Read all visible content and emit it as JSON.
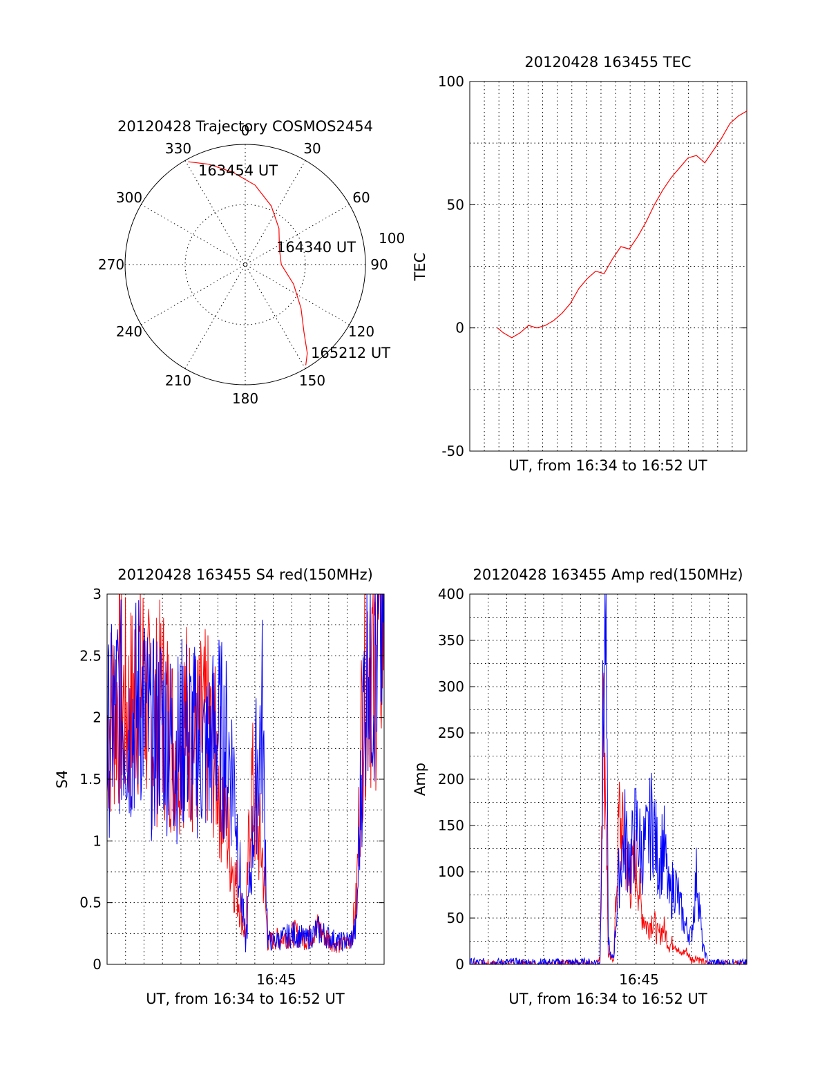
{
  "colors": {
    "primary": "#ff0000",
    "secondary": "#0000ff",
    "axis": "#000000"
  },
  "chart_data": [
    {
      "type": "polar",
      "title": "20120428 Trajectory COSMOS2454",
      "angle_labels": [
        "0",
        "30",
        "60",
        "90",
        "120",
        "150",
        "180",
        "210",
        "240",
        "270",
        "300",
        "330"
      ],
      "radius_label": "100",
      "point_labels": {
        "start": "163454 UT",
        "middle": "164340 UT",
        "end": "165212 UT"
      },
      "trajectory": {
        "azimuth_deg": [
          331,
          340,
          352,
          7,
          24,
          43,
          66,
          90,
          112,
          128,
          139,
          145,
          149
        ],
        "zenith_deg": [
          88,
          80,
          70,
          60,
          48,
          37,
          28,
          27,
          39,
          53,
          67,
          81,
          88
        ]
      }
    },
    {
      "type": "line",
      "title": "20120428 163455 TEC",
      "xlabel": "UT, from 16:34 to 16:52 UT",
      "ylabel": "TEC",
      "ylim": [
        -50,
        100
      ],
      "yticks": [
        "100",
        "50",
        "0",
        "-50"
      ],
      "xlim": [
        16.55,
        16.88
      ],
      "grid": true,
      "series": [
        {
          "color": "#ff0000",
          "x": [
            16.583,
            16.59,
            16.6,
            16.61,
            16.62,
            16.63,
            16.64,
            16.65,
            16.66,
            16.67,
            16.68,
            16.69,
            16.7,
            16.71,
            16.72,
            16.73,
            16.74,
            16.75,
            16.76,
            16.77,
            16.78,
            16.79,
            16.8,
            16.81,
            16.82,
            16.83,
            16.84,
            16.85,
            16.855,
            16.86,
            16.87,
            16.88
          ],
          "y": [
            0,
            -2,
            -4,
            -2,
            1,
            0,
            1,
            3,
            6,
            10,
            16,
            20,
            23,
            22,
            28,
            33,
            32,
            37,
            43,
            50,
            56,
            61,
            65,
            69,
            70,
            67,
            72,
            77,
            80,
            83,
            86,
            88
          ]
        }
      ]
    },
    {
      "type": "line",
      "title": "20120428 163455 S4 red(150MHz)",
      "xlabel": "UT, from 16:34 to 16:52 UT",
      "ylabel": "S4",
      "ylim": [
        0,
        3
      ],
      "yticks": [
        "3",
        "2.5",
        "2",
        "1.5",
        "1",
        "0.5",
        "0"
      ],
      "xtick_label": "16:45",
      "grid": true,
      "series": [
        {
          "color": "#ff0000",
          "x": [
            0.0,
            0.04,
            0.08,
            0.12,
            0.16,
            0.2,
            0.24,
            0.28,
            0.32,
            0.36,
            0.4,
            0.44,
            0.46,
            0.48,
            0.5,
            0.52,
            0.54,
            0.56,
            0.58,
            0.6,
            0.64,
            0.68,
            0.72,
            0.76,
            0.8,
            0.84,
            0.88,
            0.9,
            0.92,
            0.94,
            0.96,
            1.0
          ],
          "y": [
            1.9,
            2.2,
            2.0,
            2.4,
            1.9,
            2.1,
            1.8,
            2.0,
            1.8,
            1.9,
            1.6,
            1.0,
            0.7,
            0.5,
            0.2,
            1.5,
            1.1,
            0.9,
            0.18,
            0.2,
            0.22,
            0.25,
            0.2,
            0.3,
            0.2,
            0.15,
            0.2,
            0.5,
            2.0,
            2.6,
            2.4,
            2.8
          ]
        },
        {
          "color": "#0000ff",
          "x": [
            0.0,
            0.04,
            0.08,
            0.12,
            0.16,
            0.2,
            0.24,
            0.28,
            0.32,
            0.36,
            0.4,
            0.44,
            0.46,
            0.48,
            0.5,
            0.52,
            0.54,
            0.56,
            0.58,
            0.6,
            0.64,
            0.68,
            0.72,
            0.76,
            0.8,
            0.84,
            0.88,
            0.9,
            0.92,
            0.94,
            0.96,
            1.0
          ],
          "y": [
            1.8,
            2.1,
            1.9,
            2.2,
            1.8,
            2.0,
            1.7,
            1.9,
            1.8,
            1.7,
            1.9,
            1.7,
            1.5,
            0.7,
            0.15,
            0.8,
            1.6,
            2.0,
            0.2,
            0.18,
            0.22,
            0.25,
            0.2,
            0.28,
            0.22,
            0.18,
            0.2,
            0.3,
            1.7,
            2.8,
            2.4,
            2.9
          ]
        }
      ]
    },
    {
      "type": "line",
      "title": "20120428 163455 Amp red(150MHz)",
      "xlabel": "UT, from 16:34 to 16:52 UT",
      "ylabel": "Amp",
      "ylim": [
        0,
        400
      ],
      "yticks": [
        "400",
        "350",
        "300",
        "250",
        "200",
        "150",
        "100",
        "50",
        "0"
      ],
      "xtick_label": "16:45",
      "grid": true,
      "series": [
        {
          "color": "#ff0000",
          "x": [
            0.0,
            0.45,
            0.47,
            0.48,
            0.49,
            0.5,
            0.51,
            0.52,
            0.54,
            0.56,
            0.58,
            0.6,
            0.62,
            0.64,
            0.66,
            0.68,
            0.7,
            0.72,
            0.74,
            0.76,
            0.78,
            0.8,
            0.82,
            0.84,
            0.86,
            1.0
          ],
          "y": [
            0,
            0,
            5,
            270,
            210,
            10,
            5,
            8,
            160,
            120,
            90,
            110,
            60,
            40,
            50,
            30,
            40,
            20,
            25,
            10,
            15,
            5,
            8,
            2,
            0,
            0
          ]
        },
        {
          "color": "#0000ff",
          "x": [
            0.0,
            0.45,
            0.47,
            0.48,
            0.49,
            0.5,
            0.51,
            0.52,
            0.54,
            0.56,
            0.58,
            0.6,
            0.62,
            0.64,
            0.66,
            0.68,
            0.7,
            0.72,
            0.74,
            0.76,
            0.78,
            0.8,
            0.82,
            0.84,
            0.86,
            1.0
          ],
          "y": [
            2,
            2,
            3,
            240,
            395,
            30,
            5,
            10,
            100,
            140,
            110,
            150,
            120,
            130,
            160,
            110,
            130,
            70,
            90,
            60,
            40,
            30,
            100,
            20,
            2,
            1
          ]
        }
      ]
    }
  ]
}
